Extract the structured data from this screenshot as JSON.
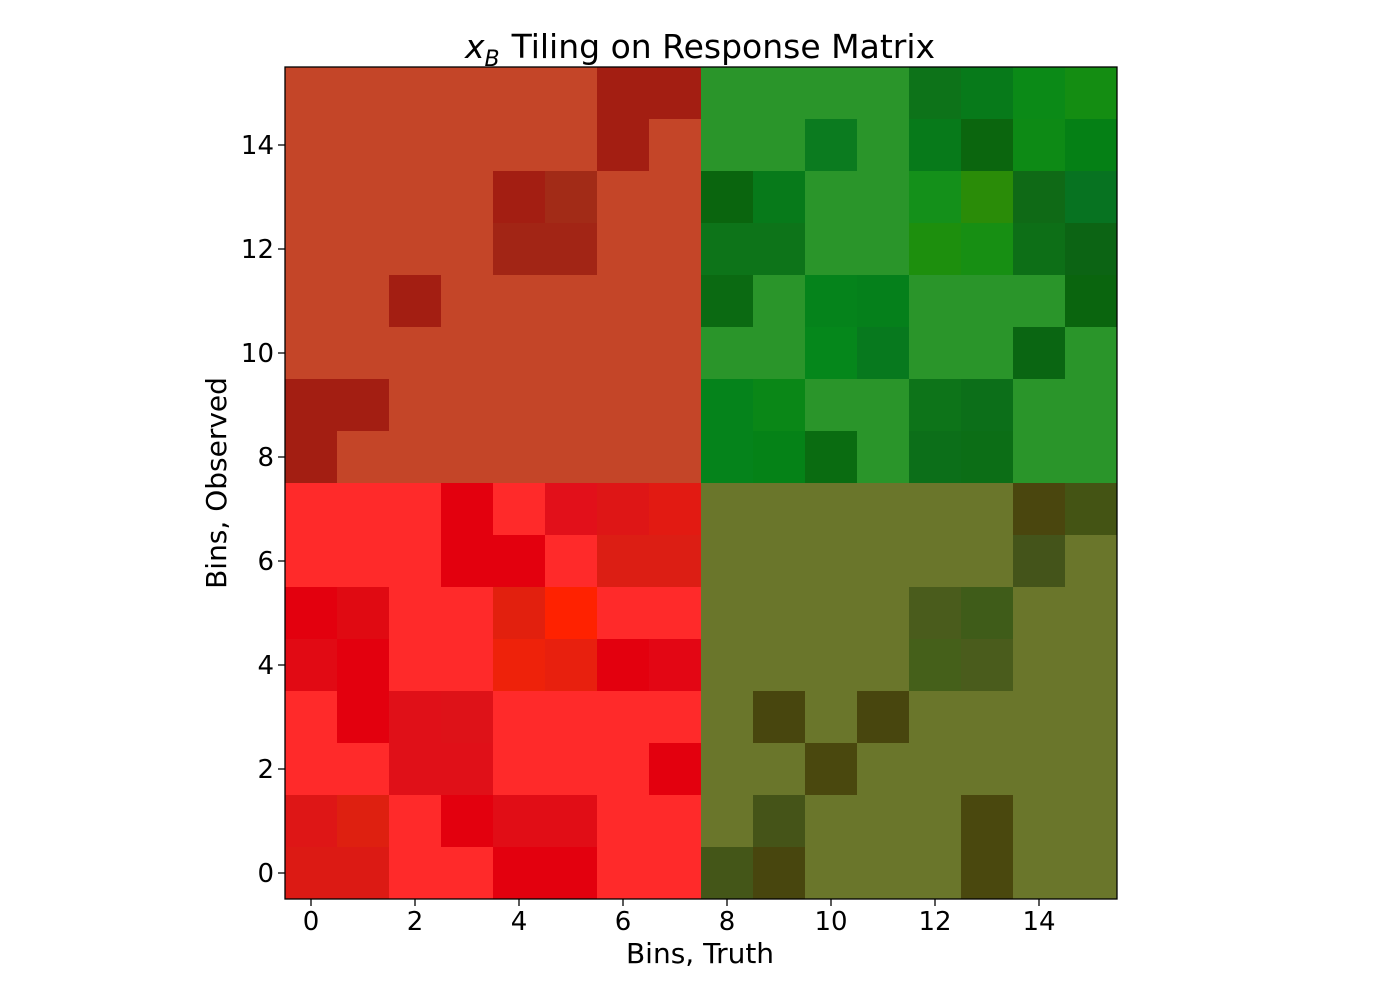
{
  "chart_data": {
    "type": "heatmap",
    "title": "Tiling on Response Matrix",
    "title_math": {
      "symbol": "x",
      "subscript": "B"
    },
    "xlabel": "Bins, Truth",
    "ylabel": "Bins, Observed",
    "xlim": [
      -0.5,
      15.5
    ],
    "ylim": [
      -0.5,
      15.5
    ],
    "x_ticks": [
      0,
      2,
      4,
      6,
      8,
      10,
      12,
      14
    ],
    "y_ticks": [
      0,
      2,
      4,
      6,
      8,
      10,
      12,
      14
    ],
    "x_tick_labels": [
      "0",
      "2",
      "4",
      "6",
      "8",
      "10",
      "12",
      "14"
    ],
    "y_tick_labels": [
      "0",
      "2",
      "4",
      "6",
      "8",
      "10",
      "12",
      "14"
    ],
    "grid": false,
    "rows_top_to_bottom": [
      [
        "#C44528",
        "#C44528",
        "#C44528",
        "#C44528",
        "#C44528",
        "#C44528",
        "#A31E12",
        "#A31E12",
        "#2A952A",
        "#2A952A",
        "#2A952A",
        "#2A952A",
        "#0D7319",
        "#077A1A",
        "#0B8A17",
        "#148D12"
      ],
      [
        "#C44528",
        "#C44528",
        "#C44528",
        "#C44528",
        "#C44528",
        "#C44528",
        "#A31E12",
        "#C44528",
        "#2A952A",
        "#2A952A",
        "#0B7B1F",
        "#2A952A",
        "#077A1A",
        "#0B660E",
        "#0D8A15",
        "#058015"
      ],
      [
        "#C44528",
        "#C44528",
        "#C44528",
        "#C44528",
        "#A31E12",
        "#A22B17",
        "#C44528",
        "#C44528",
        "#0A650E",
        "#077A1A",
        "#2A952A",
        "#2A952A",
        "#14901A",
        "#2A8C08",
        "#0F6A16",
        "#077321"
      ],
      [
        "#C44528",
        "#C44528",
        "#C44528",
        "#C44528",
        "#A22515",
        "#A22515",
        "#C44528",
        "#C44528",
        "#0D7419",
        "#0D7419",
        "#2A952A",
        "#2A952A",
        "#1D8F0D",
        "#178F13",
        "#0D6F17",
        "#0C6414"
      ],
      [
        "#C44528",
        "#C44528",
        "#A31E12",
        "#C44528",
        "#C44528",
        "#C44528",
        "#C44528",
        "#C44528",
        "#0B6A12",
        "#2A952A",
        "#05831B",
        "#05801B",
        "#2A952A",
        "#2A952A",
        "#2A952A",
        "#0A650E"
      ],
      [
        "#C44528",
        "#C44528",
        "#C44528",
        "#C44528",
        "#C44528",
        "#C44528",
        "#C44528",
        "#C44528",
        "#2A952A",
        "#2A952A",
        "#05871B",
        "#07791E",
        "#2A952A",
        "#2A952A",
        "#0A6612",
        "#2A952A"
      ],
      [
        "#A31E12",
        "#A31E12",
        "#C44528",
        "#C44528",
        "#C44528",
        "#C44528",
        "#C44528",
        "#C44528",
        "#05831B",
        "#0A8717",
        "#2A952A",
        "#2A952A",
        "#0D7419",
        "#0C6F19",
        "#2A952A",
        "#2A952A"
      ],
      [
        "#A31E12",
        "#C44528",
        "#C44528",
        "#C44528",
        "#C44528",
        "#C44528",
        "#C44528",
        "#C44528",
        "#05831B",
        "#058217",
        "#0A6C11",
        "#2A952A",
        "#0C6F19",
        "#0C6E16",
        "#2A952A",
        "#2A952A"
      ],
      [
        "#FF2A2A",
        "#FF2A2A",
        "#FF2A2A",
        "#E3000E",
        "#FF2A2A",
        "#E2101A",
        "#DE1616",
        "#E21A12",
        "#6A762B",
        "#6A762B",
        "#6A762B",
        "#6A762B",
        "#6A762B",
        "#6A762B",
        "#4A460E",
        "#445414"
      ],
      [
        "#FF2A2A",
        "#FF2A2A",
        "#FF2A2A",
        "#E3000E",
        "#E3000E",
        "#FF2A2A",
        "#DC1E14",
        "#DC1E14",
        "#6A762B",
        "#6A762B",
        "#6A762B",
        "#6A762B",
        "#6A762B",
        "#6A762B",
        "#44541A",
        "#6A762B"
      ],
      [
        "#E3000E",
        "#E00A12",
        "#FF2A2A",
        "#FF2A2A",
        "#E2200E",
        "#FF2200",
        "#FF2A2A",
        "#FF2A2A",
        "#6A762B",
        "#6A762B",
        "#6A762B",
        "#6A762B",
        "#4A5C1C",
        "#3F5C19",
        "#6A762B",
        "#6A762B"
      ],
      [
        "#E10A14",
        "#E3000E",
        "#FF2A2A",
        "#FF2A2A",
        "#EE220A",
        "#E8200E",
        "#E3000E",
        "#E30614",
        "#6A762B",
        "#6A762B",
        "#6A762B",
        "#6A762B",
        "#45601A",
        "#4A5C1C",
        "#6A762B",
        "#6A762B"
      ],
      [
        "#FF2A2A",
        "#E3000E",
        "#E01018",
        "#DE1218",
        "#FF2A2A",
        "#FF2A2A",
        "#FF2A2A",
        "#FF2A2A",
        "#6A762B",
        "#48460E",
        "#6A762B",
        "#48460E",
        "#6A762B",
        "#6A762B",
        "#6A762B",
        "#6A762B"
      ],
      [
        "#FF2A2A",
        "#FF2A2A",
        "#E01018",
        "#E01018",
        "#FF2A2A",
        "#FF2A2A",
        "#FF2A2A",
        "#E3000E",
        "#6A762B",
        "#6A762B",
        "#4A480E",
        "#6A762B",
        "#6A762B",
        "#6A762B",
        "#6A762B",
        "#6A762B"
      ],
      [
        "#DE1616",
        "#DE2010",
        "#FF2A2A",
        "#E3000E",
        "#E10D16",
        "#E10D16",
        "#FF2A2A",
        "#FF2A2A",
        "#6A762B",
        "#455418",
        "#6A762B",
        "#6A762B",
        "#6A762B",
        "#4A480E",
        "#6A762B",
        "#6A762B"
      ],
      [
        "#DC1A14",
        "#DC1A14",
        "#FF2A2A",
        "#FF2A2A",
        "#E3000E",
        "#E3000E",
        "#FF2A2A",
        "#FF2A2A",
        "#445618",
        "#48460E",
        "#6A762B",
        "#6A762B",
        "#6A762B",
        "#4A480E",
        "#6A762B",
        "#6A762B"
      ]
    ]
  }
}
